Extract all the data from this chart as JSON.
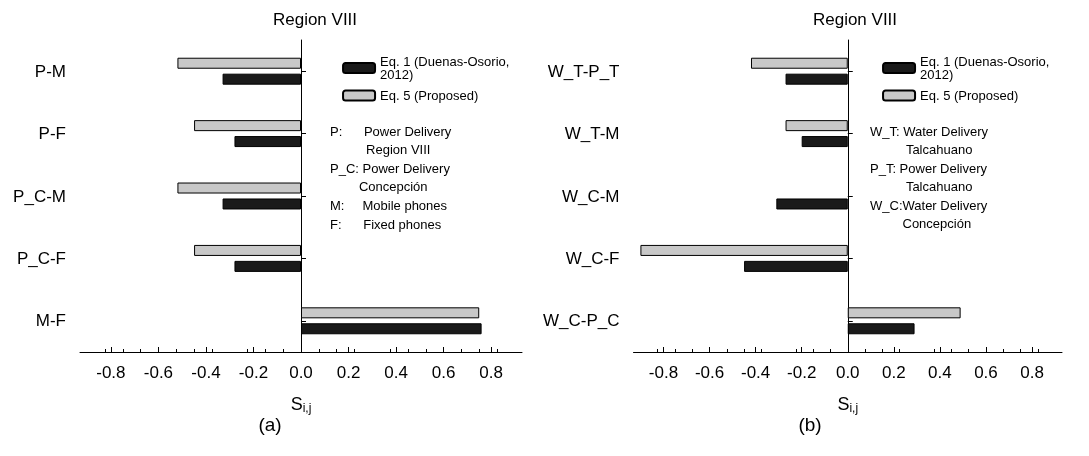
{
  "chart_data": [
    {
      "type": "bar",
      "orientation": "horizontal",
      "title": "Region VIII",
      "xlabel": "S$_{i,j}$",
      "categories": [
        "P-M",
        "P-F",
        "P_C-M",
        "P_C-F",
        "M-F"
      ],
      "xlim": [
        -0.93,
        0.93
      ],
      "xticks": [
        -0.8,
        -0.6,
        -0.4,
        -0.2,
        "0.0",
        0.2,
        0.4,
        0.6,
        0.8
      ],
      "legend": "top right",
      "series": [
        {
          "name": "Eq. 1 (Duenas-Osorio, 2012)",
          "color": "#1a1a1a",
          "values": [
            -0.33,
            -0.28,
            -0.33,
            -0.28,
            0.76
          ]
        },
        {
          "name": "Eq. 5 (Proposed)",
          "color": "#c8c8c8",
          "values": [
            -0.52,
            -0.45,
            -0.52,
            -0.45,
            0.75
          ]
        }
      ],
      "annotations": [
        "P:      Power Delivery\n          Region VIII",
        "P_C: Power Delivery\n        Concepción",
        "M:     Mobile phones",
        "F:      Fixed phones",
        "(a)"
      ]
    },
    {
      "type": "bar",
      "orientation": "horizontal",
      "title": "Region VIII",
      "xlabel": "S$_{i,j}$",
      "categories": [
        "W_T-P_T",
        "W_T-M",
        "W_C-M",
        "W_C-F",
        "W_C-P_C"
      ],
      "xlim": [
        -0.93,
        0.93
      ],
      "xticks": [
        -0.8,
        -0.6,
        -0.4,
        -0.2,
        "0.0",
        0.2,
        0.4,
        0.6,
        0.8
      ],
      "legend": "top right",
      "series": [
        {
          "name": "Eq. 1 (Duenas-Osorio, 2012)",
          "color": "#1a1a1a",
          "values": [
            -0.27,
            -0.2,
            -0.31,
            -0.45,
            0.29
          ]
        },
        {
          "name": "Eq. 5 (Proposed)",
          "color": "#c8c8c8",
          "values": [
            -0.42,
            -0.27,
            null,
            -0.9,
            0.49
          ]
        }
      ],
      "annotations": [
        "W_T: Water Delivery\n          Talcahuano",
        "P_T: Power Delivery\n          Talcahuano",
        "W_C:Water Delivery\n         Concepción",
        "(b)"
      ]
    }
  ]
}
